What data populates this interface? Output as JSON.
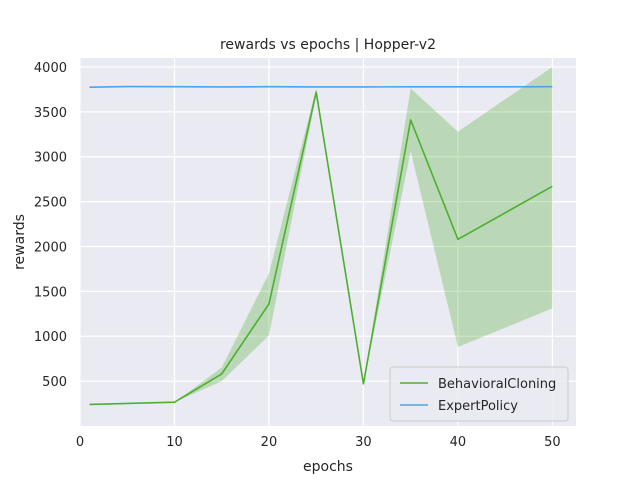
{
  "chart_data": {
    "type": "line",
    "title": "rewards vs epochs | Hopper-v2",
    "xlabel": "epochs",
    "ylabel": "rewards",
    "xlim": [
      0,
      52.5
    ],
    "ylim": [
      0,
      4100
    ],
    "x_ticks": [
      0,
      10,
      20,
      30,
      40,
      50
    ],
    "y_ticks": [
      500,
      1000,
      1500,
      2000,
      2500,
      3000,
      3500,
      4000
    ],
    "grid": true,
    "legend_position": "bottom-right",
    "series": [
      {
        "name": "BehavioralCloning",
        "color": "#4daf2f",
        "band_color": "#4daf2f",
        "x": [
          1,
          10,
          15,
          20,
          25,
          30,
          35,
          40,
          50
        ],
        "values": [
          240,
          265,
          580,
          1360,
          3720,
          470,
          3410,
          2080,
          2670
        ],
        "lower": [
          240,
          265,
          500,
          1010,
          3680,
          470,
          3060,
          880,
          1310
        ],
        "upper": [
          240,
          265,
          650,
          1700,
          3760,
          470,
          3760,
          3280,
          4000
        ]
      },
      {
        "name": "ExpertPolicy",
        "color": "#4da3e6",
        "x": [
          1,
          5,
          10,
          15,
          20,
          25,
          30,
          35,
          40,
          45,
          50
        ],
        "values": [
          3775,
          3782,
          3780,
          3778,
          3780,
          3778,
          3778,
          3779,
          3779,
          3779,
          3780
        ]
      }
    ]
  }
}
